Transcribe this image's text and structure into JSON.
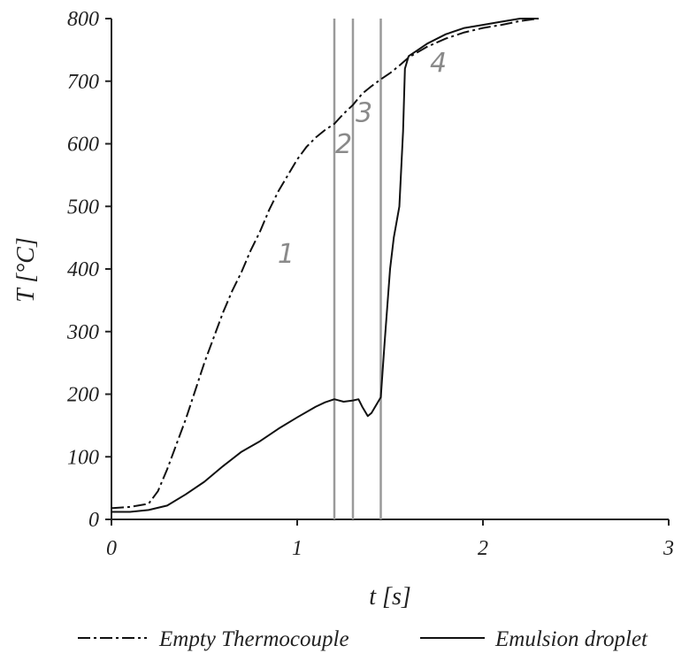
{
  "chart_data": {
    "type": "line",
    "xlabel": "t [s]",
    "ylabel": "T [°C]",
    "xlim": [
      0,
      3
    ],
    "ylim": [
      0,
      800
    ],
    "xticks": [
      0,
      1,
      2,
      3
    ],
    "yticks": [
      0,
      100,
      200,
      300,
      400,
      500,
      600,
      700,
      800
    ],
    "grid": false,
    "legend": {
      "placement": "bottom"
    },
    "series": [
      {
        "name": "Empty Thermocouple",
        "style": "dash-dot",
        "color": "#111111",
        "x": [
          0,
          0.1,
          0.2,
          0.25,
          0.3,
          0.35,
          0.4,
          0.45,
          0.5,
          0.55,
          0.6,
          0.65,
          0.7,
          0.75,
          0.8,
          0.85,
          0.9,
          0.95,
          1.0,
          1.05,
          1.1,
          1.15,
          1.2,
          1.25,
          1.3,
          1.35,
          1.4,
          1.45,
          1.5,
          1.55,
          1.6,
          1.7,
          1.8,
          1.9,
          2.0,
          2.1,
          2.2,
          2.3
        ],
        "y": [
          18,
          20,
          25,
          45,
          80,
          120,
          160,
          205,
          250,
          290,
          330,
          365,
          395,
          430,
          460,
          495,
          525,
          550,
          575,
          595,
          610,
          622,
          632,
          648,
          662,
          680,
          692,
          703,
          713,
          725,
          738,
          755,
          768,
          778,
          785,
          790,
          796,
          800
        ]
      },
      {
        "name": "Emulsion droplet",
        "style": "solid",
        "color": "#111111",
        "x": [
          0,
          0.1,
          0.2,
          0.3,
          0.4,
          0.5,
          0.6,
          0.7,
          0.8,
          0.9,
          1.0,
          1.1,
          1.15,
          1.2,
          1.25,
          1.3,
          1.33,
          1.35,
          1.38,
          1.4,
          1.42,
          1.45,
          1.47,
          1.5,
          1.52,
          1.55,
          1.57,
          1.58,
          1.6,
          1.65,
          1.7,
          1.8,
          1.9,
          2.0,
          2.1,
          2.2,
          2.3
        ],
        "y": [
          12,
          12,
          15,
          22,
          40,
          60,
          85,
          108,
          125,
          145,
          163,
          180,
          187,
          192,
          188,
          190,
          192,
          180,
          165,
          170,
          180,
          195,
          280,
          400,
          450,
          500,
          620,
          720,
          740,
          750,
          760,
          775,
          785,
          790,
          795,
          800,
          800
        ]
      }
    ],
    "vertical_lines": [
      1.2,
      1.3,
      1.45
    ],
    "annotations": [
      {
        "text": "1",
        "x": 0.94,
        "y": 410
      },
      {
        "text": "2",
        "x": 1.25,
        "y": 585
      },
      {
        "text": "3",
        "x": 1.36,
        "y": 635
      },
      {
        "text": "4",
        "x": 1.76,
        "y": 715
      }
    ]
  }
}
